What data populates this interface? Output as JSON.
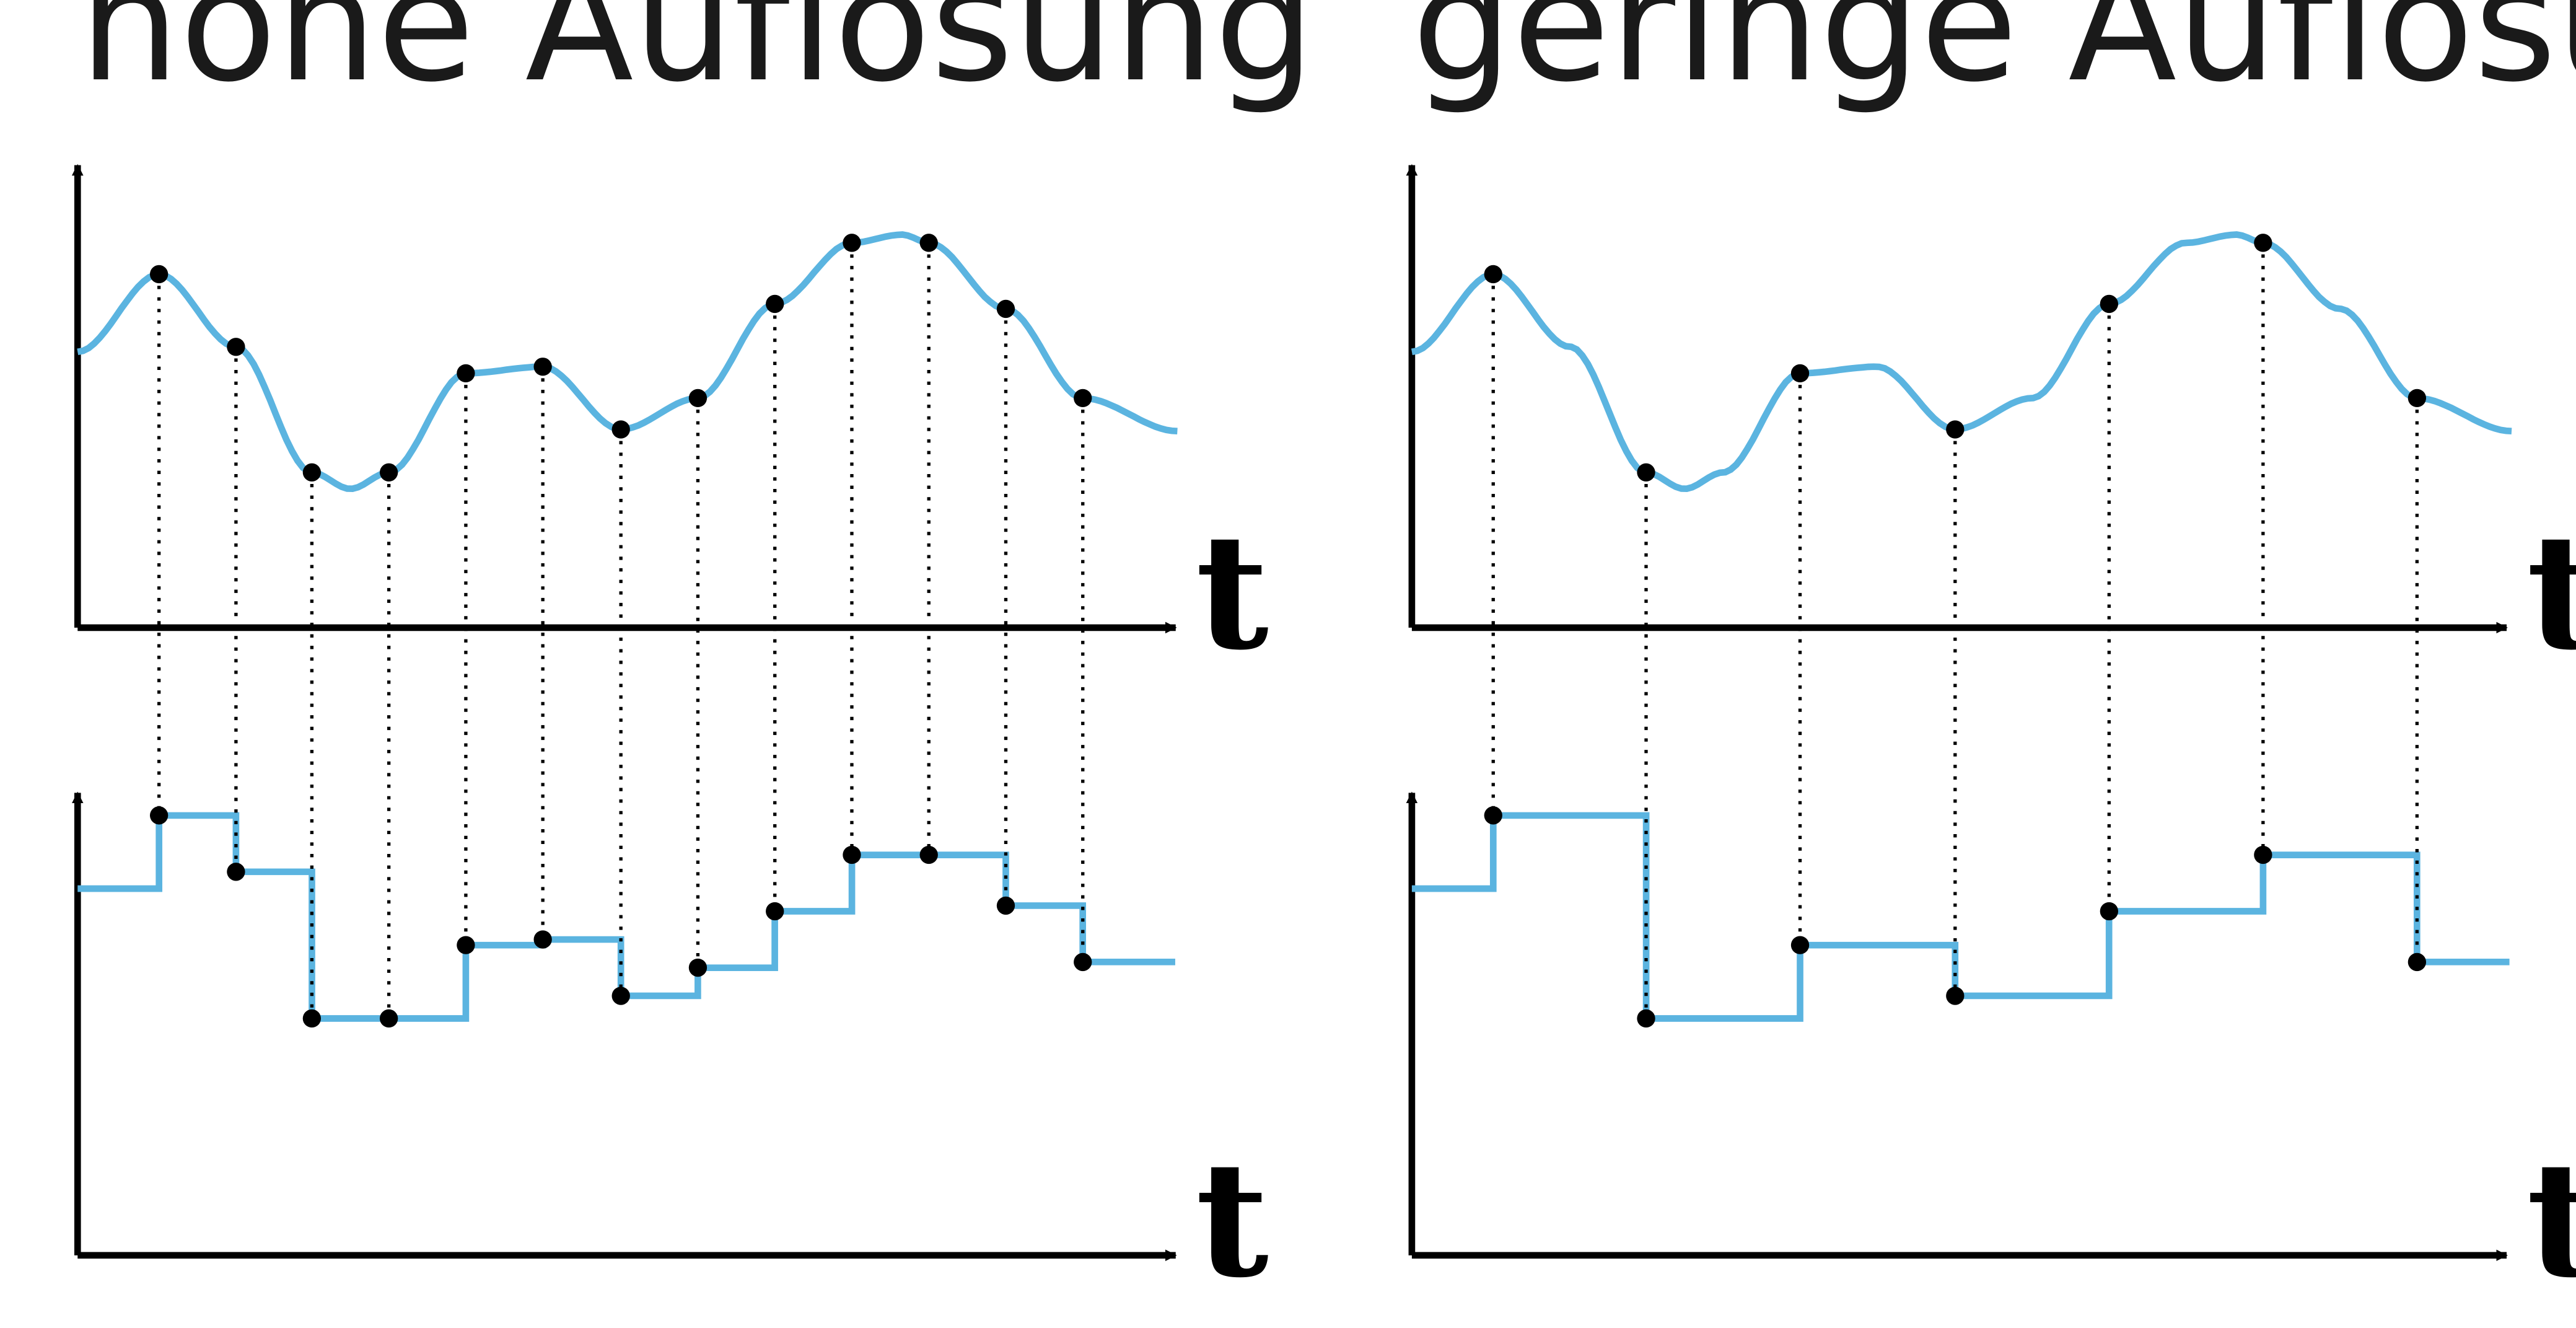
{
  "colors": {
    "signal": "#5BB4E0",
    "axis": "#000000",
    "sample": "#000000",
    "text": "#1a1a1a"
  },
  "axis_label": "t",
  "panels": [
    {
      "title": "hohe Auflösung",
      "sample_times": [
        0.074,
        0.144,
        0.213,
        0.283,
        0.353,
        0.423,
        0.494,
        0.564,
        0.634,
        0.704,
        0.774,
        0.844,
        0.914
      ],
      "quantized_values": [
        0.78,
        0.68,
        0.42,
        0.42,
        0.55,
        0.56,
        0.46,
        0.51,
        0.61,
        0.71,
        0.71,
        0.62,
        0.52
      ],
      "step_start_value": 0.65
    },
    {
      "title": "geringe Auflösung",
      "sample_times": [
        0.074,
        0.213,
        0.353,
        0.494,
        0.634,
        0.774,
        0.914
      ],
      "quantized_values": [
        0.78,
        0.42,
        0.55,
        0.46,
        0.61,
        0.71,
        0.52
      ],
      "step_start_value": 0.65
    }
  ]
}
